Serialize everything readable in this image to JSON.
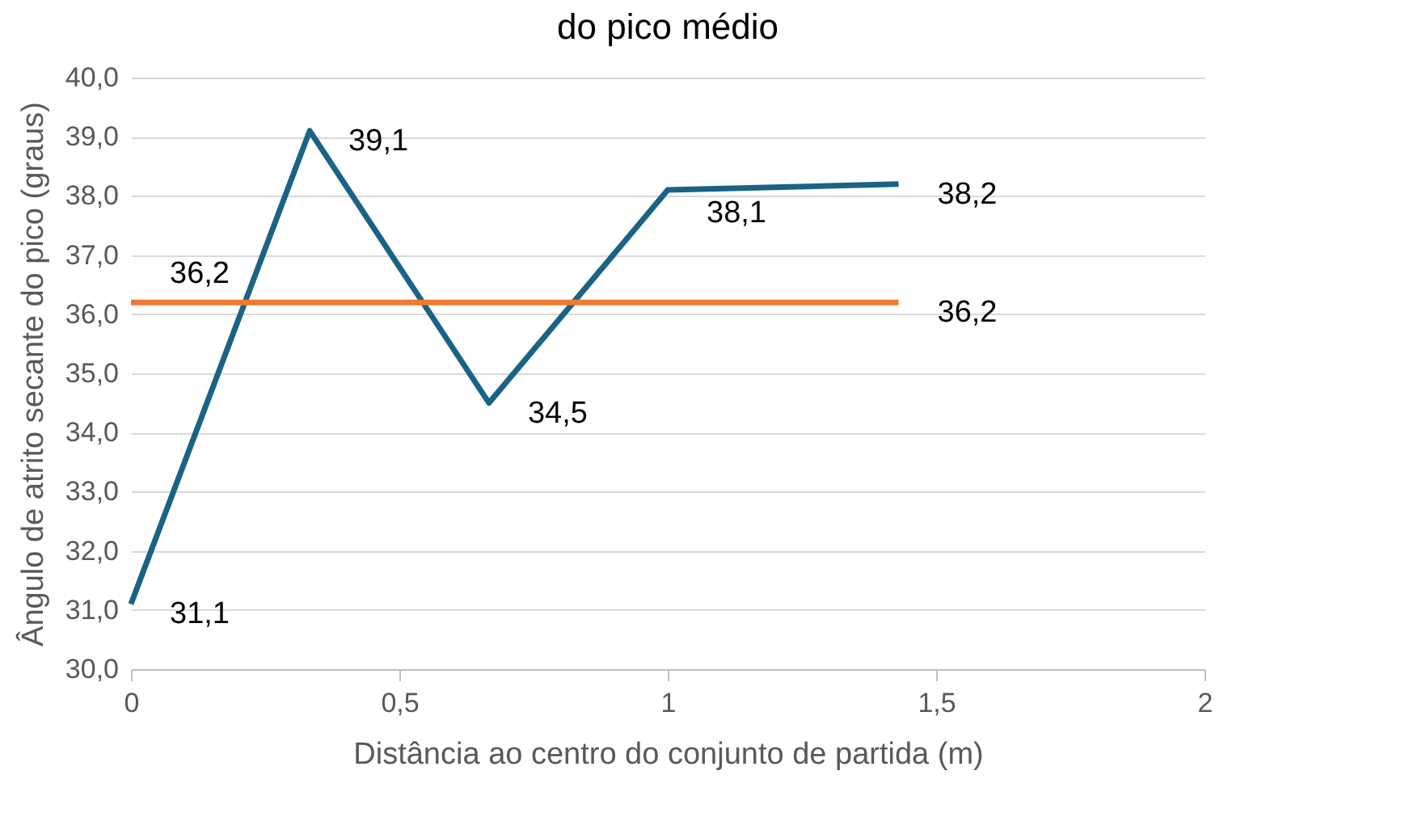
{
  "chart_data": {
    "type": "line",
    "title": "do pico médio",
    "xlabel": "Distância ao centro do conjunto de partida (m)",
    "ylabel": "Ângulo de atrito secante do pico (graus)",
    "xlim": [
      0,
      2
    ],
    "xticks": [
      0,
      {
        "value": 0.5,
        "label": "0,5"
      },
      1,
      {
        "value": 1.5,
        "label": "1,5"
      },
      2
    ],
    "ylim": [
      30,
      40
    ],
    "yticks": [
      {
        "value": 30,
        "label": "30,0"
      },
      {
        "value": 31,
        "label": "31,0"
      },
      {
        "value": 32,
        "label": "32,0"
      },
      {
        "value": 33,
        "label": "33,0"
      },
      {
        "value": 34,
        "label": "34,0"
      },
      {
        "value": 35,
        "label": "35,0"
      },
      {
        "value": 36,
        "label": "36,0"
      },
      {
        "value": 37,
        "label": "37,0"
      },
      {
        "value": 38,
        "label": "38,0"
      },
      {
        "value": 39,
        "label": "39,0"
      },
      {
        "value": 40,
        "label": "40,0"
      }
    ],
    "grid": "y",
    "marker": "none",
    "line_style": "solid",
    "series": [
      {
        "color": "#1a6385",
        "x": [
          0,
          0.333,
          0.667,
          1.0,
          1.43
        ],
        "values": [
          31.1,
          39.1,
          34.5,
          38.1,
          38.2
        ],
        "value_labels": [
          "31,1",
          "39,1",
          "34,5",
          "38,1",
          "38,2"
        ]
      },
      {
        "color": "#f07a30",
        "x": [
          0,
          1.43
        ],
        "values": [
          36.2,
          36.2
        ],
        "value_labels": [
          "36,2",
          "36,2"
        ]
      }
    ]
  }
}
